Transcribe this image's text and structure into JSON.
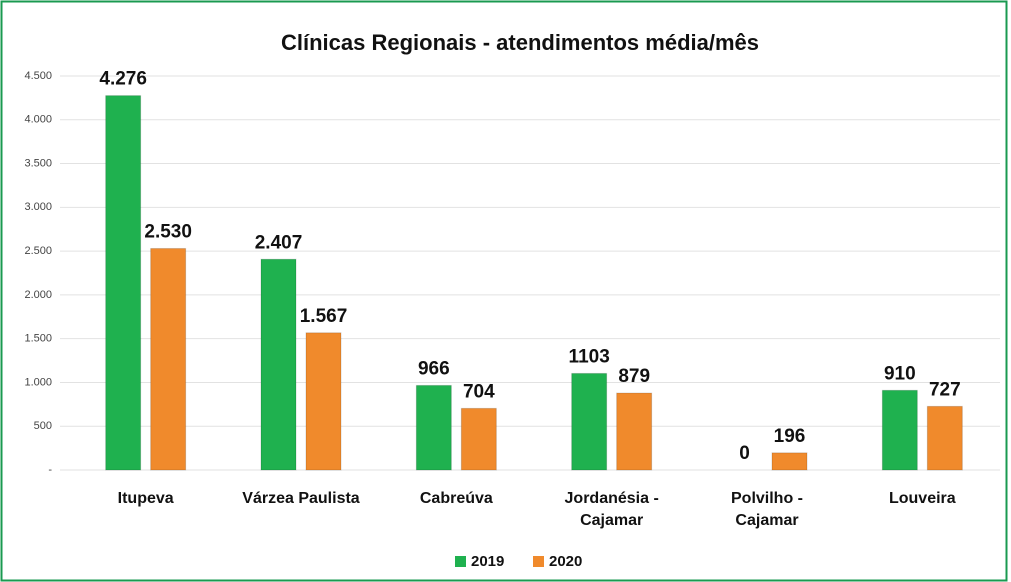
{
  "chart_data": {
    "type": "bar",
    "title": "Clínicas Regionais - atendimentos média/mês",
    "categories": [
      "Itupeva",
      "Várzea Paulista",
      "Cabreúva",
      "Jordanésia -\nCajamar",
      "Polvilho -\nCajamar",
      "Louveira"
    ],
    "series": [
      {
        "name": "2019",
        "color": "#1fb14f",
        "values": [
          4276,
          2407,
          966,
          1103,
          0,
          910
        ],
        "value_labels": [
          "4.276",
          "2.407",
          "966",
          "1103",
          "0",
          "910"
        ]
      },
      {
        "name": "2020",
        "color": "#f08a2c",
        "values": [
          2530,
          1567,
          704,
          879,
          196,
          727
        ],
        "value_labels": [
          "2.530",
          "1.567",
          "704",
          "879",
          "196",
          "727"
        ]
      }
    ],
    "ylim": [
      0,
      4500
    ],
    "yticks": [
      {
        "value": 0,
        "label": "-"
      },
      500,
      {
        "value": 1000,
        "label": "1.000"
      },
      {
        "value": 1500,
        "label": "1.500"
      },
      {
        "value": 2000,
        "label": "2.000"
      },
      {
        "value": 2500,
        "label": "2.500"
      },
      {
        "value": 3000,
        "label": "3.000"
      },
      {
        "value": 3500,
        "label": "3.500"
      },
      {
        "value": 4000,
        "label": "4.000"
      },
      {
        "value": 4500,
        "label": "4.500"
      }
    ],
    "grid": true,
    "legend": "bottom"
  }
}
